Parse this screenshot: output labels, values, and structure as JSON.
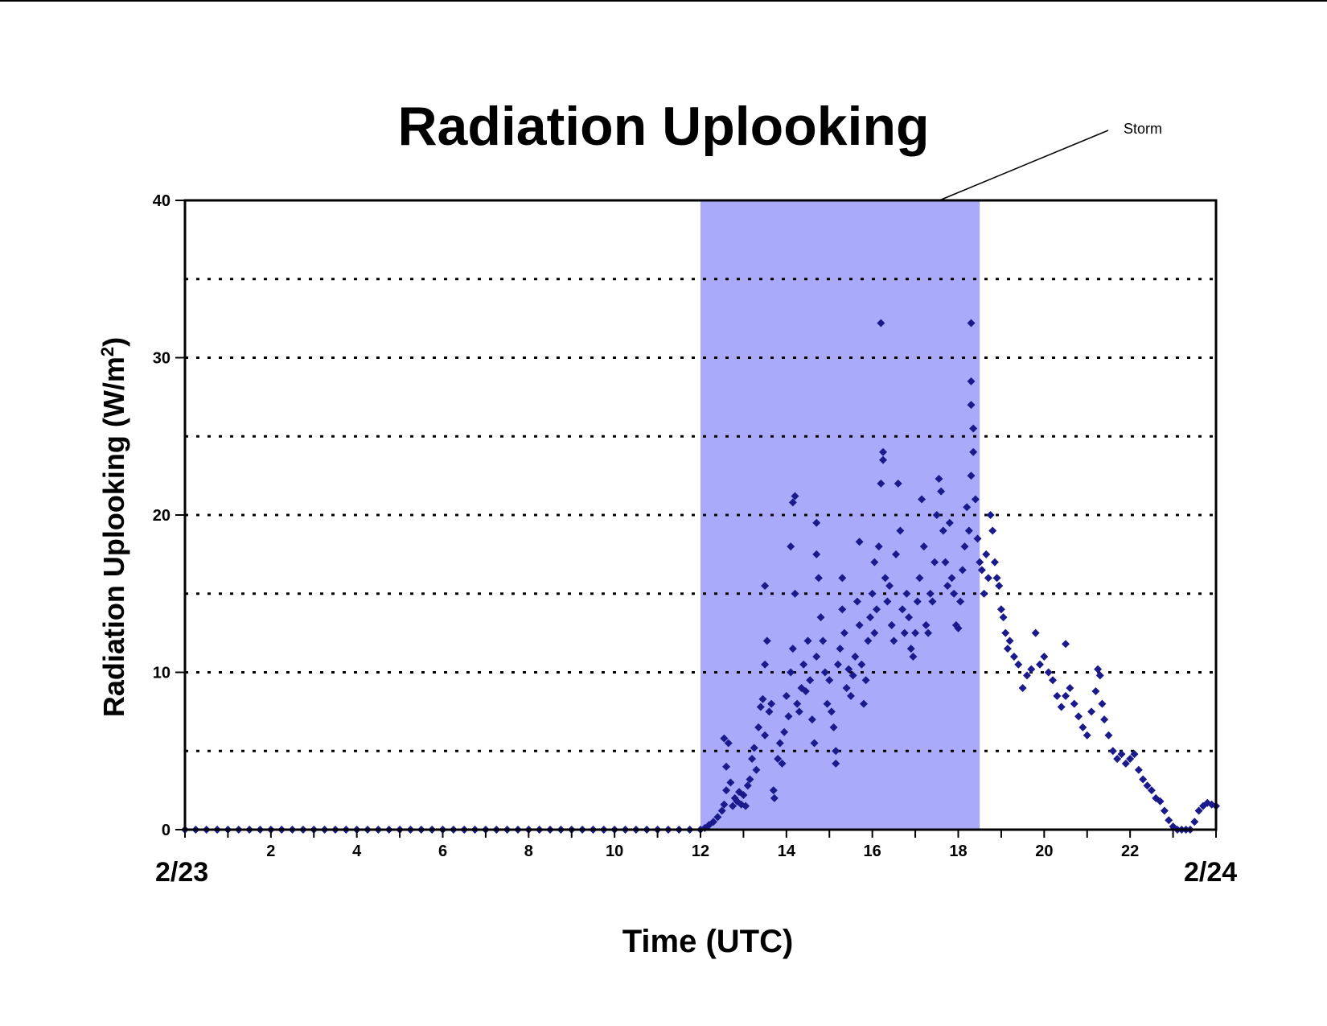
{
  "chart_data": {
    "type": "scatter",
    "title": "Radiation Uplooking",
    "xlabel": "Time (UTC)",
    "ylabel_main": "Radiation Uplooking (W/m",
    "ylabel_sup": "2",
    "ylabel_close": ")",
    "xlim": [
      0,
      24
    ],
    "ylim": [
      0,
      40
    ],
    "x_ticks": [
      2,
      4,
      6,
      8,
      10,
      12,
      14,
      16,
      18,
      20,
      22
    ],
    "y_ticks": [
      0,
      10,
      20,
      30,
      40
    ],
    "grid": "horizontal dotted every 5",
    "date_start": "2/23",
    "date_end": "2/24",
    "annotation": {
      "text": "Storm",
      "band_start": 12,
      "band_end": 18.5,
      "band_color": "#aaaafa"
    },
    "marker_color": "#1a1a8c",
    "points": [
      [
        0.0,
        0
      ],
      [
        0.25,
        0
      ],
      [
        0.5,
        0
      ],
      [
        0.75,
        0
      ],
      [
        1.0,
        0
      ],
      [
        1.25,
        0
      ],
      [
        1.5,
        0
      ],
      [
        1.75,
        0
      ],
      [
        2.0,
        0
      ],
      [
        2.25,
        0
      ],
      [
        2.5,
        0
      ],
      [
        2.75,
        0
      ],
      [
        3.0,
        0
      ],
      [
        3.25,
        0
      ],
      [
        3.5,
        0
      ],
      [
        3.75,
        0
      ],
      [
        4.0,
        0
      ],
      [
        4.25,
        0
      ],
      [
        4.5,
        0
      ],
      [
        4.75,
        0
      ],
      [
        5.0,
        0
      ],
      [
        5.25,
        0
      ],
      [
        5.5,
        0
      ],
      [
        5.75,
        0
      ],
      [
        6.0,
        0
      ],
      [
        6.25,
        0
      ],
      [
        6.5,
        0
      ],
      [
        6.75,
        0
      ],
      [
        7.0,
        0
      ],
      [
        7.25,
        0
      ],
      [
        7.5,
        0
      ],
      [
        7.75,
        0
      ],
      [
        8.0,
        0
      ],
      [
        8.25,
        0
      ],
      [
        8.5,
        0
      ],
      [
        8.75,
        0
      ],
      [
        9.0,
        0
      ],
      [
        9.25,
        0
      ],
      [
        9.5,
        0
      ],
      [
        9.75,
        0
      ],
      [
        10.0,
        0
      ],
      [
        10.25,
        0
      ],
      [
        10.5,
        0
      ],
      [
        10.75,
        0
      ],
      [
        11.0,
        0
      ],
      [
        11.25,
        0
      ],
      [
        11.5,
        0
      ],
      [
        11.75,
        0
      ],
      [
        12.0,
        0
      ],
      [
        12.1,
        0.1
      ],
      [
        12.2,
        0.3
      ],
      [
        12.3,
        0.5
      ],
      [
        12.4,
        0.8
      ],
      [
        12.5,
        1.2
      ],
      [
        12.55,
        1.6
      ],
      [
        12.6,
        2.5
      ],
      [
        12.6,
        4.0
      ],
      [
        12.55,
        5.8
      ],
      [
        12.65,
        5.5
      ],
      [
        12.7,
        3.0
      ],
      [
        12.75,
        1.5
      ],
      [
        12.8,
        2.0
      ],
      [
        12.85,
        1.8
      ],
      [
        12.9,
        2.4
      ],
      [
        12.95,
        1.6
      ],
      [
        13.0,
        2.2
      ],
      [
        13.05,
        1.5
      ],
      [
        13.1,
        2.8
      ],
      [
        13.15,
        3.2
      ],
      [
        13.2,
        4.5
      ],
      [
        13.25,
        5.2
      ],
      [
        13.3,
        3.8
      ],
      [
        13.35,
        6.5
      ],
      [
        13.4,
        7.8
      ],
      [
        13.45,
        8.3
      ],
      [
        13.5,
        6.0
      ],
      [
        13.5,
        10.5
      ],
      [
        13.55,
        12.0
      ],
      [
        13.5,
        15.5
      ],
      [
        13.6,
        7.5
      ],
      [
        13.65,
        8.0
      ],
      [
        13.7,
        2.5
      ],
      [
        13.72,
        2.0
      ],
      [
        13.8,
        4.5
      ],
      [
        13.85,
        5.5
      ],
      [
        13.9,
        4.2
      ],
      [
        13.95,
        6.2
      ],
      [
        14.0,
        8.5
      ],
      [
        14.05,
        7.2
      ],
      [
        14.1,
        10.0
      ],
      [
        14.15,
        11.5
      ],
      [
        14.1,
        18.0
      ],
      [
        14.15,
        20.8
      ],
      [
        14.2,
        21.2
      ],
      [
        14.2,
        15.0
      ],
      [
        14.25,
        8.0
      ],
      [
        14.3,
        7.5
      ],
      [
        14.35,
        9.0
      ],
      [
        14.4,
        10.5
      ],
      [
        14.45,
        8.8
      ],
      [
        14.5,
        12.0
      ],
      [
        14.55,
        9.5
      ],
      [
        14.6,
        7.0
      ],
      [
        14.65,
        5.5
      ],
      [
        14.7,
        11.0
      ],
      [
        14.7,
        17.5
      ],
      [
        14.75,
        16.0
      ],
      [
        14.7,
        19.5
      ],
      [
        14.8,
        13.5
      ],
      [
        14.85,
        12.0
      ],
      [
        14.9,
        10.0
      ],
      [
        14.95,
        8.0
      ],
      [
        15.0,
        9.5
      ],
      [
        15.05,
        7.5
      ],
      [
        15.1,
        6.5
      ],
      [
        15.15,
        5.0
      ],
      [
        15.15,
        4.2
      ],
      [
        15.2,
        10.5
      ],
      [
        15.25,
        11.5
      ],
      [
        15.3,
        14.0
      ],
      [
        15.3,
        16.0
      ],
      [
        15.35,
        12.5
      ],
      [
        15.4,
        9.0
      ],
      [
        15.45,
        10.2
      ],
      [
        15.5,
        8.5
      ],
      [
        15.55,
        9.8
      ],
      [
        15.6,
        11.0
      ],
      [
        15.65,
        14.5
      ],
      [
        15.7,
        13.0
      ],
      [
        15.7,
        18.3
      ],
      [
        15.75,
        10.5
      ],
      [
        15.8,
        8.0
      ],
      [
        15.85,
        9.5
      ],
      [
        15.9,
        12.0
      ],
      [
        15.95,
        13.5
      ],
      [
        16.0,
        15.0
      ],
      [
        16.05,
        17.0
      ],
      [
        16.05,
        12.5
      ],
      [
        16.1,
        14.0
      ],
      [
        16.15,
        18.0
      ],
      [
        16.2,
        22.0
      ],
      [
        16.25,
        24.0
      ],
      [
        16.2,
        32.2
      ],
      [
        16.25,
        23.5
      ],
      [
        16.3,
        16.0
      ],
      [
        16.35,
        14.5
      ],
      [
        16.4,
        15.5
      ],
      [
        16.45,
        13.0
      ],
      [
        16.5,
        12.0
      ],
      [
        16.55,
        17.5
      ],
      [
        16.6,
        22.0
      ],
      [
        16.65,
        19.0
      ],
      [
        16.7,
        14.0
      ],
      [
        16.75,
        12.5
      ],
      [
        16.8,
        15.0
      ],
      [
        16.85,
        13.5
      ],
      [
        16.9,
        11.5
      ],
      [
        16.95,
        11.0
      ],
      [
        17.0,
        12.5
      ],
      [
        17.05,
        14.5
      ],
      [
        17.1,
        16.0
      ],
      [
        17.15,
        21.0
      ],
      [
        17.2,
        18.0
      ],
      [
        17.25,
        13.0
      ],
      [
        17.3,
        12.5
      ],
      [
        17.35,
        15.0
      ],
      [
        17.4,
        14.5
      ],
      [
        17.45,
        17.0
      ],
      [
        17.5,
        20.0
      ],
      [
        17.55,
        22.3
      ],
      [
        17.6,
        21.5
      ],
      [
        17.65,
        19.0
      ],
      [
        17.7,
        17.0
      ],
      [
        17.75,
        15.5
      ],
      [
        17.8,
        19.5
      ],
      [
        17.85,
        16.0
      ],
      [
        17.9,
        15.0
      ],
      [
        17.95,
        13.0
      ],
      [
        18.0,
        12.8
      ],
      [
        18.05,
        14.5
      ],
      [
        18.1,
        16.5
      ],
      [
        18.15,
        18.0
      ],
      [
        18.2,
        20.5
      ],
      [
        18.25,
        19.0
      ],
      [
        18.3,
        22.5
      ],
      [
        18.35,
        25.5
      ],
      [
        18.3,
        27.0
      ],
      [
        18.3,
        28.5
      ],
      [
        18.3,
        32.2
      ],
      [
        18.35,
        24.0
      ],
      [
        18.4,
        21.0
      ],
      [
        18.45,
        18.5
      ],
      [
        18.5,
        17.0
      ],
      [
        18.55,
        16.5
      ],
      [
        18.6,
        15.0
      ],
      [
        18.65,
        17.5
      ],
      [
        18.7,
        16.0
      ],
      [
        18.75,
        20.0
      ],
      [
        18.8,
        19.0
      ],
      [
        18.85,
        17.0
      ],
      [
        18.9,
        16.0
      ],
      [
        18.95,
        15.5
      ],
      [
        19.0,
        14.0
      ],
      [
        19.05,
        13.5
      ],
      [
        19.1,
        12.5
      ],
      [
        19.15,
        11.5
      ],
      [
        19.2,
        12.0
      ],
      [
        19.3,
        11.0
      ],
      [
        19.4,
        10.5
      ],
      [
        19.5,
        9.0
      ],
      [
        19.6,
        9.8
      ],
      [
        19.7,
        10.2
      ],
      [
        19.8,
        12.5
      ],
      [
        19.9,
        10.5
      ],
      [
        20.0,
        11.0
      ],
      [
        20.1,
        10.0
      ],
      [
        20.2,
        9.5
      ],
      [
        20.3,
        8.5
      ],
      [
        20.4,
        7.8
      ],
      [
        20.5,
        8.5
      ],
      [
        20.5,
        11.8
      ],
      [
        20.6,
        9.0
      ],
      [
        20.7,
        8.0
      ],
      [
        20.8,
        7.2
      ],
      [
        20.9,
        6.5
      ],
      [
        21.0,
        6.0
      ],
      [
        21.1,
        7.5
      ],
      [
        21.2,
        8.8
      ],
      [
        21.25,
        10.2
      ],
      [
        21.3,
        9.8
      ],
      [
        21.35,
        8.0
      ],
      [
        21.4,
        7.0
      ],
      [
        21.5,
        6.0
      ],
      [
        21.6,
        5.0
      ],
      [
        21.7,
        4.5
      ],
      [
        21.8,
        4.8
      ],
      [
        21.9,
        4.2
      ],
      [
        22.0,
        4.5
      ],
      [
        22.1,
        4.8
      ],
      [
        22.2,
        3.8
      ],
      [
        22.3,
        3.2
      ],
      [
        22.4,
        2.8
      ],
      [
        22.5,
        2.5
      ],
      [
        22.6,
        2.0
      ],
      [
        22.7,
        1.8
      ],
      [
        22.8,
        1.2
      ],
      [
        22.9,
        0.6
      ],
      [
        23.0,
        0.2
      ],
      [
        23.1,
        0
      ],
      [
        23.2,
        0
      ],
      [
        23.3,
        0
      ],
      [
        23.4,
        0
      ],
      [
        23.5,
        0.5
      ],
      [
        23.6,
        1.2
      ],
      [
        23.7,
        1.5
      ],
      [
        23.8,
        1.7
      ],
      [
        23.9,
        1.6
      ],
      [
        24.0,
        1.5
      ]
    ]
  }
}
